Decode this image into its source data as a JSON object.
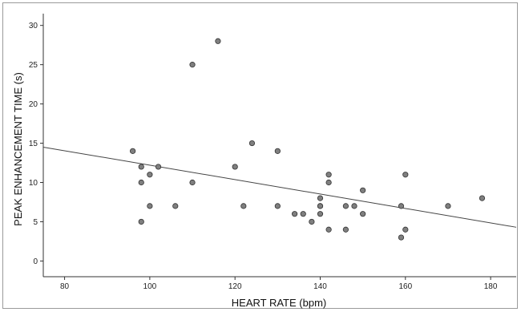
{
  "chart_data": {
    "type": "scatter",
    "title": "",
    "xlabel": "HEART RATE (bpm)",
    "ylabel": "PEAK ENHANCEMENT TIME (s)",
    "xlim": [
      75,
      186
    ],
    "ylim": [
      -2,
      31.5
    ],
    "xticks": [
      80,
      100,
      120,
      140,
      160,
      180
    ],
    "yticks": [
      0,
      5,
      10,
      15,
      20,
      25,
      30
    ],
    "grid": false,
    "legend": "none",
    "point_color": "#7f7f7f",
    "point_stroke": "#333333",
    "series": [
      {
        "points": [
          {
            "x": 96,
            "y": 14
          },
          {
            "x": 98,
            "y": 12
          },
          {
            "x": 98,
            "y": 10
          },
          {
            "x": 98,
            "y": 5
          },
          {
            "x": 100,
            "y": 11
          },
          {
            "x": 100,
            "y": 7
          },
          {
            "x": 102,
            "y": 12
          },
          {
            "x": 106,
            "y": 7
          },
          {
            "x": 110,
            "y": 25
          },
          {
            "x": 110,
            "y": 10
          },
          {
            "x": 116,
            "y": 28
          },
          {
            "x": 120,
            "y": 12
          },
          {
            "x": 122,
            "y": 7
          },
          {
            "x": 124,
            "y": 15
          },
          {
            "x": 130,
            "y": 14
          },
          {
            "x": 130,
            "y": 7
          },
          {
            "x": 134,
            "y": 6
          },
          {
            "x": 136,
            "y": 6
          },
          {
            "x": 138,
            "y": 5
          },
          {
            "x": 140,
            "y": 8
          },
          {
            "x": 140,
            "y": 7
          },
          {
            "x": 140,
            "y": 7
          },
          {
            "x": 140,
            "y": 6
          },
          {
            "x": 142,
            "y": 11
          },
          {
            "x": 142,
            "y": 10
          },
          {
            "x": 142,
            "y": 4
          },
          {
            "x": 146,
            "y": 7
          },
          {
            "x": 146,
            "y": 4
          },
          {
            "x": 148,
            "y": 7
          },
          {
            "x": 150,
            "y": 9
          },
          {
            "x": 150,
            "y": 6
          },
          {
            "x": 159,
            "y": 7
          },
          {
            "x": 159,
            "y": 3
          },
          {
            "x": 160,
            "y": 11
          },
          {
            "x": 160,
            "y": 4
          },
          {
            "x": 170,
            "y": 7
          },
          {
            "x": 178,
            "y": 8
          }
        ]
      }
    ],
    "fit_line": {
      "x": [
        75,
        186
      ],
      "y": [
        14.5,
        4.3
      ]
    }
  }
}
